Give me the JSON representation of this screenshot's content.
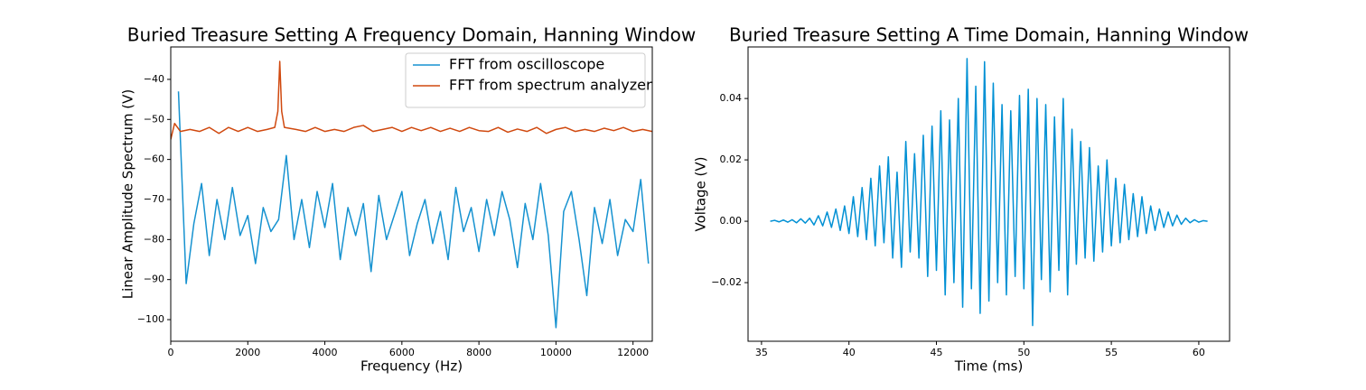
{
  "chart_data": [
    {
      "type": "line",
      "title": "Buried Treasure Setting A Frequency Domain, Hanning Window",
      "x_label": "Frequency (Hz)",
      "y_label": "Linear Amplitude Spectrum (V)",
      "xlim": [
        0,
        12500
      ],
      "ylim": [
        -105.4,
        -31.9
      ],
      "xticks": [
        0,
        2000,
        4000,
        6000,
        8000,
        10000,
        12000
      ],
      "yticks": [
        {
          "value": -100,
          "label": "−100"
        },
        {
          "value": -90,
          "label": "−90"
        },
        {
          "value": -80,
          "label": "−80"
        },
        {
          "value": -70,
          "label": "−70"
        },
        {
          "value": -60,
          "label": "−60"
        },
        {
          "value": -50,
          "label": "−50"
        },
        {
          "value": -40,
          "label": "−40"
        }
      ],
      "grid": false,
      "legend": "upper right",
      "series": [
        {
          "name": "FFT from oscilloscope",
          "color": "#1692d0",
          "x": [
            200,
            400,
            600,
            800,
            1000,
            1200,
            1400,
            1600,
            1800,
            2000,
            2200,
            2400,
            2600,
            2800,
            3000,
            3200,
            3400,
            3600,
            3800,
            4000,
            4200,
            4400,
            4600,
            4800,
            5000,
            5200,
            5400,
            5600,
            5800,
            6000,
            6200,
            6400,
            6600,
            6800,
            7000,
            7200,
            7400,
            7600,
            7800,
            8000,
            8200,
            8400,
            8600,
            8800,
            9000,
            9200,
            9400,
            9600,
            9800,
            10000,
            10200,
            10400,
            10600,
            10800,
            11000,
            11200,
            11400,
            11600,
            11800,
            12000,
            12200,
            12400
          ],
          "values": [
            -43,
            -91,
            -76,
            -66,
            -84,
            -70,
            -80,
            -67,
            -79,
            -74,
            -86,
            -72,
            -78,
            -75,
            -59,
            -80,
            -70,
            -82,
            -68,
            -77,
            -66,
            -85,
            -72,
            -79,
            -71,
            -88,
            -69,
            -80,
            -74,
            -68,
            -84,
            -76,
            -70,
            -81,
            -73,
            -85,
            -67,
            -78,
            -72,
            -83,
            -70,
            -79,
            -68,
            -75,
            -87,
            -71,
            -80,
            -66,
            -79,
            -102,
            -73,
            -68,
            -80,
            -94,
            -72,
            -81,
            -70,
            -84,
            -75,
            -78,
            -65,
            -86
          ]
        },
        {
          "name": "FFT from spectrum analyzer",
          "color": "#d0490f",
          "x": [
            0,
            100,
            250,
            500,
            750,
            1000,
            1250,
            1500,
            1750,
            2000,
            2250,
            2500,
            2700,
            2780,
            2830,
            2880,
            2950,
            3250,
            3500,
            3750,
            4000,
            4250,
            4500,
            4750,
            5000,
            5250,
            5500,
            5750,
            6000,
            6250,
            6500,
            6750,
            7000,
            7250,
            7500,
            7750,
            8000,
            8250,
            8500,
            8750,
            9000,
            9250,
            9500,
            9750,
            10000,
            10250,
            10500,
            10750,
            11000,
            11250,
            11500,
            11750,
            12000,
            12250,
            12500
          ],
          "values": [
            -55,
            -51,
            -53,
            -52.5,
            -53,
            -52,
            -53.5,
            -52,
            -53,
            -52,
            -53,
            -52.5,
            -52,
            -48,
            -35.5,
            -48,
            -52,
            -52.5,
            -53,
            -52,
            -53,
            -52.5,
            -53,
            -52,
            -51.5,
            -53,
            -52.5,
            -52,
            -53,
            -52,
            -52.8,
            -52,
            -53,
            -52.2,
            -53,
            -52,
            -52.8,
            -53,
            -52,
            -53.2,
            -52.4,
            -53,
            -52,
            -53.5,
            -52.5,
            -52,
            -53,
            -52.5,
            -53,
            -52.2,
            -52.8,
            -52,
            -53,
            -52.5,
            -53
          ]
        }
      ]
    },
    {
      "type": "line",
      "title": "Buried Treasure Setting A Time Domain, Hanning Window",
      "x_label": "Time (ms)",
      "y_label": "Voltage (V)",
      "xlim": [
        34.23,
        61.76
      ],
      "ylim": [
        -0.0391,
        0.0568
      ],
      "xticks": [
        35,
        40,
        45,
        50,
        55,
        60
      ],
      "yticks": [
        {
          "value": -0.02,
          "label": "−0.02"
        },
        {
          "value": 0,
          "label": "0.00"
        },
        {
          "value": 0.02,
          "label": "0.02"
        },
        {
          "value": 0.04,
          "label": "0.04"
        }
      ],
      "grid": false,
      "series": [
        {
          "color": "#0090d4",
          "x": [
            35.5,
            35.75,
            36,
            36.25,
            36.5,
            36.75,
            37,
            37.25,
            37.5,
            37.75,
            38,
            38.25,
            38.5,
            38.75,
            39,
            39.25,
            39.5,
            39.75,
            40,
            40.25,
            40.5,
            40.75,
            41,
            41.25,
            41.5,
            41.75,
            42,
            42.25,
            42.5,
            42.75,
            43,
            43.25,
            43.5,
            43.75,
            44,
            44.25,
            44.5,
            44.75,
            45,
            45.25,
            45.5,
            45.75,
            46,
            46.25,
            46.5,
            46.75,
            47,
            47.25,
            47.5,
            47.75,
            48,
            48.25,
            48.5,
            48.75,
            49,
            49.25,
            49.5,
            49.75,
            50,
            50.25,
            50.5,
            50.75,
            51,
            51.25,
            51.5,
            51.75,
            52,
            52.25,
            52.5,
            52.75,
            53,
            53.25,
            53.5,
            53.75,
            54,
            54.25,
            54.5,
            54.75,
            55,
            55.25,
            55.5,
            55.75,
            56,
            56.25,
            56.5,
            56.75,
            57,
            57.25,
            57.5,
            57.75,
            58,
            58.25,
            58.5,
            58.75,
            59,
            59.25,
            59.5,
            59.75,
            60,
            60.25,
            60.5
          ],
          "values": [
            0,
            0.0003,
            -0.0002,
            0.0004,
            -0.0003,
            0.0005,
            -0.0005,
            0.0008,
            -0.0006,
            0.001,
            -0.0012,
            0.0018,
            -0.0015,
            0.003,
            -0.002,
            0.004,
            -0.003,
            0.005,
            -0.004,
            0.008,
            -0.005,
            0.011,
            -0.006,
            0.014,
            -0.008,
            0.018,
            -0.007,
            0.021,
            -0.012,
            0.016,
            -0.015,
            0.026,
            -0.01,
            0.022,
            -0.012,
            0.028,
            -0.018,
            0.031,
            -0.016,
            0.036,
            -0.024,
            0.033,
            -0.02,
            0.04,
            -0.028,
            0.053,
            -0.022,
            0.044,
            -0.03,
            0.052,
            -0.026,
            0.045,
            -0.02,
            0.038,
            -0.024,
            0.036,
            -0.018,
            0.041,
            -0.022,
            0.043,
            -0.034,
            0.04,
            -0.019,
            0.038,
            -0.023,
            0.034,
            -0.016,
            0.04,
            -0.024,
            0.03,
            -0.014,
            0.026,
            -0.012,
            0.024,
            -0.013,
            0.018,
            -0.01,
            0.02,
            -0.008,
            0.014,
            -0.007,
            0.012,
            -0.006,
            0.009,
            -0.005,
            0.008,
            -0.004,
            0.005,
            -0.003,
            0.004,
            -0.002,
            0.003,
            -0.0015,
            0.002,
            -0.001,
            0.001,
            -0.0005,
            0.0005,
            -0.0003,
            0.0002,
            0
          ]
        }
      ]
    }
  ]
}
